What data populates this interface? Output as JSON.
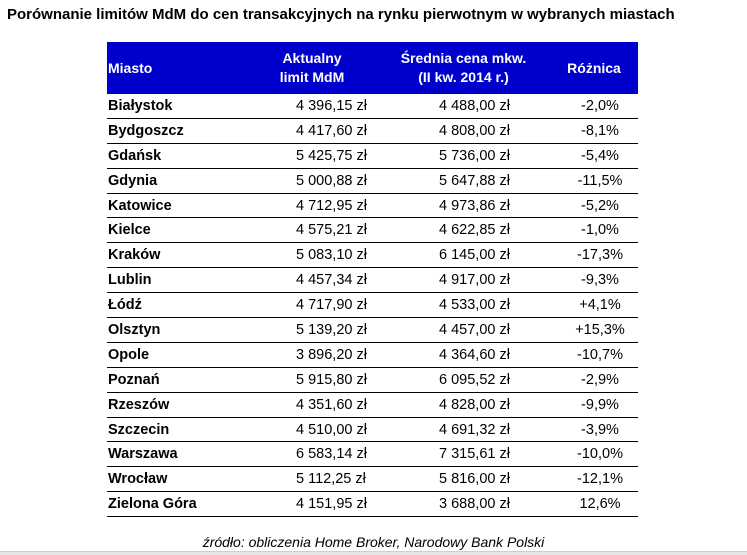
{
  "title": "Porównanie limitów MdM do cen transakcyjnych na rynku pierwotnym w wybranych miastach",
  "colors": {
    "header_bg": "#0000cc",
    "header_text": "#ffffff"
  },
  "table": {
    "headers": {
      "city": "Miasto",
      "limit_line1": "Aktualny",
      "limit_line2": "limit MdM",
      "price_line1": "Średnia cena mkw.",
      "price_line2": "(II kw. 2014 r.)",
      "diff": "Różnica"
    },
    "rows": [
      {
        "city": "Białystok",
        "limit": "4 396,15 zł",
        "price": "4 488,00 zł",
        "diff": "-2,0%"
      },
      {
        "city": "Bydgoszcz",
        "limit": "4 417,60 zł",
        "price": "4 808,00 zł",
        "diff": "-8,1%"
      },
      {
        "city": "Gdańsk",
        "limit": "5 425,75 zł",
        "price": "5 736,00 zł",
        "diff": "-5,4%"
      },
      {
        "city": "Gdynia",
        "limit": "5 000,88 zł",
        "price": "5 647,88 zł",
        "diff": "-11,5%"
      },
      {
        "city": "Katowice",
        "limit": "4 712,95 zł",
        "price": "4 973,86 zł",
        "diff": "-5,2%"
      },
      {
        "city": "Kielce",
        "limit": "4 575,21 zł",
        "price": "4 622,85 zł",
        "diff": "-1,0%"
      },
      {
        "city": "Kraków",
        "limit": "5 083,10 zł",
        "price": "6 145,00 zł",
        "diff": "-17,3%"
      },
      {
        "city": "Lublin",
        "limit": "4 457,34 zł",
        "price": "4 917,00 zł",
        "diff": "-9,3%"
      },
      {
        "city": "Łódź",
        "limit": "4 717,90 zł",
        "price": "4 533,00 zł",
        "diff": "+4,1%"
      },
      {
        "city": "Olsztyn",
        "limit": "5 139,20 zł",
        "price": "4 457,00 zł",
        "diff": "+15,3%"
      },
      {
        "city": "Opole",
        "limit": "3 896,20 zł",
        "price": "4 364,60 zł",
        "diff": "-10,7%"
      },
      {
        "city": "Poznań",
        "limit": "5 915,80 zł",
        "price": "6 095,52 zł",
        "diff": "-2,9%"
      },
      {
        "city": "Rzeszów",
        "limit": "4 351,60 zł",
        "price": "4 828,00 zł",
        "diff": "-9,9%"
      },
      {
        "city": "Szczecin",
        "limit": "4 510,00 zł",
        "price": "4 691,32 zł",
        "diff": "-3,9%"
      },
      {
        "city": "Warszawa",
        "limit": "6 583,14 zł",
        "price": "7 315,61 zł",
        "diff": "-10,0%"
      },
      {
        "city": "Wrocław",
        "limit": "5 112,25 zł",
        "price": "5 816,00 zł",
        "diff": "-12,1%"
      },
      {
        "city": "Zielona Góra",
        "limit": "4 151,95 zł",
        "price": "3 688,00 zł",
        "diff": "12,6%"
      }
    ]
  },
  "source": "źródło: obliczenia Home Broker, Narodowy Bank Polski"
}
